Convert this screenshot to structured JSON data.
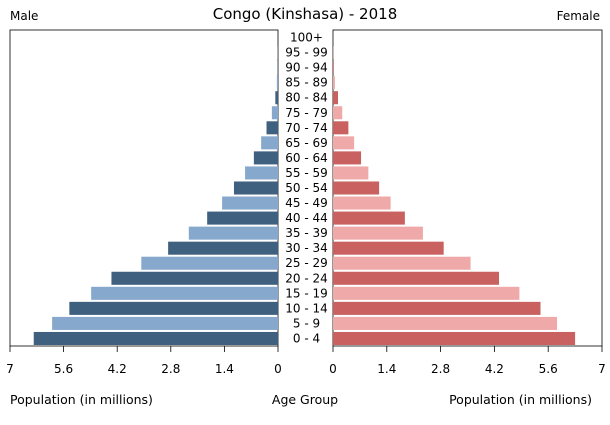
{
  "chart_data": {
    "type": "bar",
    "title": "Congo (Kinshasa) - 2018",
    "left_label": "Male",
    "right_label": "Female",
    "xlabel_left": "Population (in millions)",
    "xlabel_center": "Age Group",
    "xlabel_right": "Population (in millions)",
    "categories": [
      "0 - 4",
      "5 - 9",
      "10 - 14",
      "15 - 19",
      "20 - 24",
      "25 - 29",
      "30 - 34",
      "35 - 39",
      "40 - 44",
      "45 - 49",
      "50 - 54",
      "55 - 59",
      "60 - 64",
      "65 - 69",
      "70 - 74",
      "75 - 79",
      "80 - 84",
      "85 - 89",
      "90 - 94",
      "95 - 99",
      "100+"
    ],
    "series": [
      {
        "name": "Male",
        "values": [
          6.38,
          5.9,
          5.45,
          4.88,
          4.35,
          3.57,
          2.87,
          2.33,
          1.85,
          1.46,
          1.15,
          0.86,
          0.63,
          0.44,
          0.3,
          0.16,
          0.07,
          0.03,
          0.01,
          0.005,
          0.001
        ]
      },
      {
        "name": "Female",
        "values": [
          6.3,
          5.83,
          5.4,
          4.85,
          4.32,
          3.58,
          2.88,
          2.34,
          1.87,
          1.5,
          1.2,
          0.92,
          0.73,
          0.55,
          0.4,
          0.24,
          0.13,
          0.05,
          0.02,
          0.007,
          0.002
        ]
      }
    ],
    "xlim": [
      0,
      7
    ],
    "ticks": [
      "7",
      "5.6",
      "4.2",
      "2.8",
      "1.4",
      "0",
      "0",
      "1.4",
      "2.8",
      "4.2",
      "5.6",
      "7"
    ],
    "colors": {
      "male_dark": "#40607f",
      "male_light": "#86a8cc",
      "female_dark": "#c8615f",
      "female_light": "#eea9a8"
    }
  }
}
